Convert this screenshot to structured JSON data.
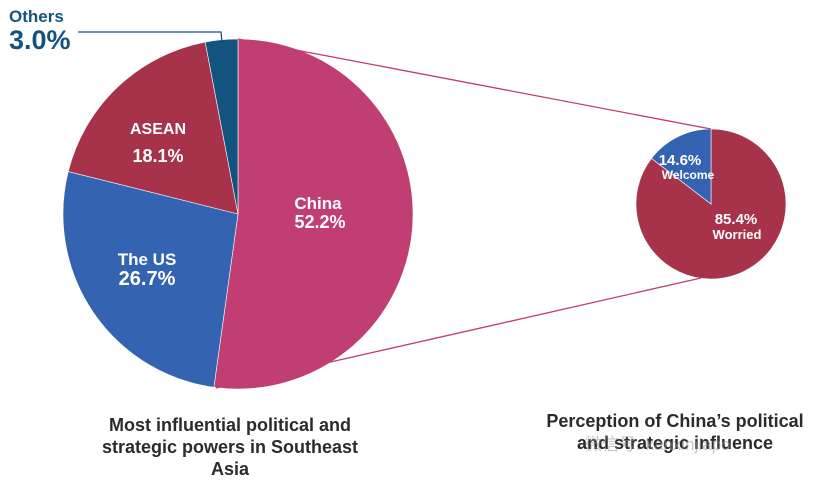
{
  "chart_data": [
    {
      "type": "pie",
      "title": "Most influential political and strategic powers in Southeast Asia",
      "labels": [
        "China",
        "The US",
        "ASEAN",
        "Others"
      ],
      "values": [
        52.2,
        26.7,
        18.1,
        3.0
      ],
      "value_labels": [
        "52.2%",
        "26.7%",
        "18.1%",
        "3.0%"
      ],
      "colors": [
        "#c03e72",
        "#3363b1",
        "#a7334b",
        "#13547f"
      ],
      "start_angle": "12 o'clock, clockwise"
    },
    {
      "type": "pie",
      "title": "Perception of China's political and strategic influence",
      "labels": [
        "Worried",
        "Welcome"
      ],
      "values": [
        85.4,
        14.6
      ],
      "value_labels": [
        "85.4%",
        "14.6%"
      ],
      "colors": [
        "#a7334b",
        "#3363b1"
      ],
      "start_angle": "12 o'clock, clockwise"
    }
  ],
  "main_pie": {
    "china": {
      "name": "China",
      "pct": "52.2%"
    },
    "us": {
      "name": "The US",
      "pct": "26.7%"
    },
    "asean": {
      "name": "ASEAN",
      "pct": "18.1%"
    },
    "others": {
      "name": "Others",
      "pct": "3.0%"
    },
    "caption": [
      "Most influential political and",
      "strategic powers in Southeast",
      "Asia"
    ]
  },
  "small_pie": {
    "welcome": {
      "name": "Welcome",
      "pct": "14.6%"
    },
    "worried": {
      "name": "Worried",
      "pct": "85.4%"
    },
    "caption": [
      "Perception of China’s political",
      "and strategic influence"
    ]
  },
  "watermark": "微信号: kanxinjiapo"
}
